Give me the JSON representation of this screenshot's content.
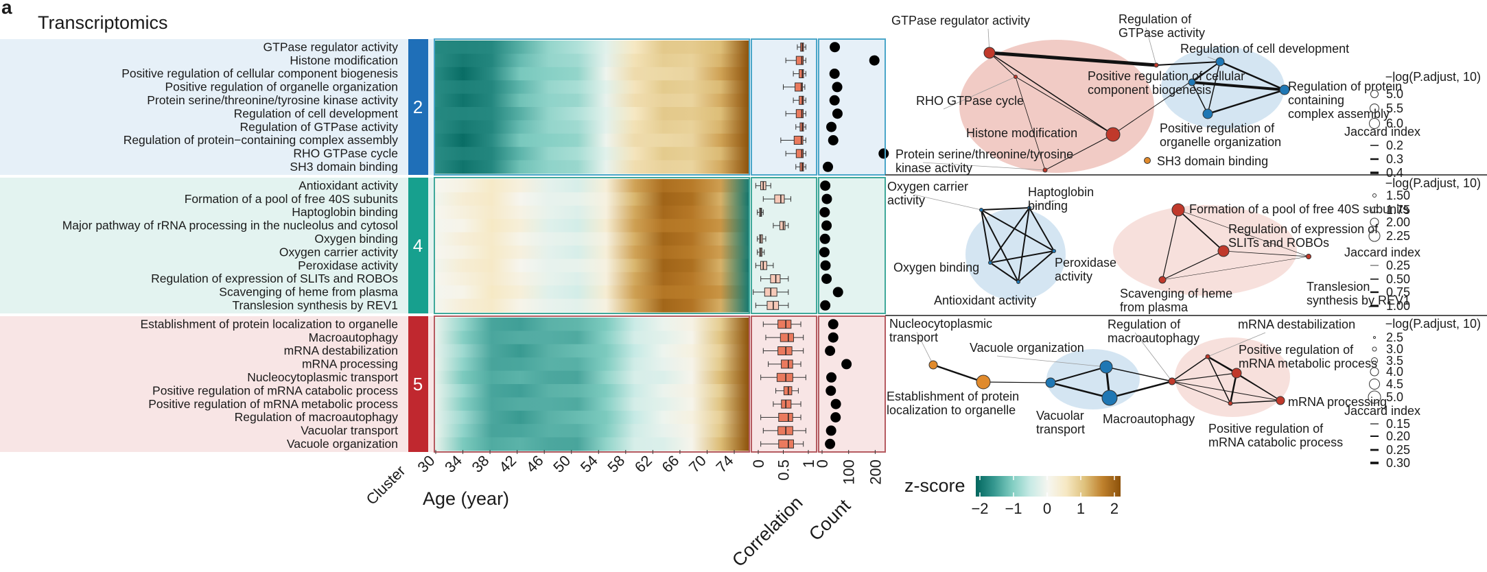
{
  "panel_letter": "a",
  "section_title": "Transcriptomics",
  "axis": {
    "cluster_label": "Cluster",
    "age_label": "Age (year)",
    "age_ticks": [
      "30",
      "34",
      "38",
      "42",
      "46",
      "50",
      "54",
      "58",
      "62",
      "66",
      "70",
      "74"
    ],
    "corr_label": "Correlation",
    "corr_ticks": [
      "0",
      "0.5",
      "1"
    ],
    "count_label": "Count",
    "count_ticks": [
      "0",
      "100",
      "200"
    ]
  },
  "zscore": {
    "title": "z-score",
    "ticks": [
      "−2",
      "−1",
      "0",
      "1",
      "2"
    ],
    "colors": [
      "#01665e",
      "#35978f",
      "#80cdc1",
      "#c7eae5",
      "#f6f6f0",
      "#f6e8c3",
      "#dfc27d",
      "#bf812d",
      "#8c510a"
    ]
  },
  "colors": {
    "cluster2": "#1f6fb8",
    "cluster4": "#17a08e",
    "cluster5": "#c0282f",
    "bg2": "#e6f0f8",
    "bg4": "#e3f3f0",
    "bg5": "#f8e5e5",
    "border2": "#4aa6c9",
    "border4": "#3fa89a",
    "border5": "#b55a60",
    "box": "#ea7a5e",
    "box_light": "#f6c9b8"
  },
  "chart_data": {
    "type": "heatmap",
    "clusters": [
      {
        "id": "2",
        "terms": [
          "GTPase regulator activity",
          "Histone modification",
          "Positive regulation of cellular component biogenesis",
          "Positive regulation of organelle organization",
          "Protein serine/threonine/tyrosine kinase activity",
          "Regulation of cell development",
          "Regulation of GTPase activity",
          "Regulation of protein−containing complex assembly",
          "RHO GTPase cycle",
          "SH3 domain binding"
        ],
        "counts": [
          48,
          197,
          47,
          57,
          47,
          58,
          35,
          42,
          232,
          22
        ],
        "correlation_median": [
          0.88,
          0.87,
          0.88,
          0.86,
          0.88,
          0.87,
          0.88,
          0.86,
          0.87,
          0.88
        ],
        "correlation_range": [
          [
            0.78,
            0.95
          ],
          [
            0.55,
            0.95
          ],
          [
            0.7,
            0.95
          ],
          [
            0.5,
            0.93
          ],
          [
            0.7,
            0.95
          ],
          [
            0.55,
            0.95
          ],
          [
            0.75,
            0.95
          ],
          [
            0.45,
            0.95
          ],
          [
            0.55,
            0.95
          ],
          [
            0.75,
            0.95
          ]
        ],
        "heatmap_profile": [
          -1.8,
          -1.7,
          -1.5,
          -1.3,
          -1.0,
          -0.6,
          -0.1,
          0.4,
          0.8,
          1.0,
          1.1,
          2.0
        ]
      },
      {
        "id": "4",
        "terms": [
          "Antioxidant activity",
          "Formation of a pool of free 40S subunits",
          "Haptoglobin binding",
          "Major pathway of rRNA processing in the nucleolus and cytosol",
          "Oxygen binding",
          "Oxygen carrier activity",
          "Peroxidase activity",
          "Regulation of expression of SLITs and ROBOs",
          "Scavenging of heme from plasma",
          "Translesion synthesis by REV1"
        ],
        "counts": [
          12,
          18,
          10,
          17,
          11,
          9,
          13,
          17,
          60,
          12
        ],
        "correlation_median": [
          0.1,
          0.45,
          0.05,
          0.5,
          0.05,
          0.05,
          0.1,
          0.35,
          0.25,
          0.3
        ],
        "correlation_range": [
          [
            -0.05,
            0.25
          ],
          [
            0.1,
            0.65
          ],
          [
            -0.02,
            0.1
          ],
          [
            0.3,
            0.6
          ],
          [
            -0.02,
            0.15
          ],
          [
            -0.02,
            0.12
          ],
          [
            -0.05,
            0.3
          ],
          [
            0.05,
            0.6
          ],
          [
            -0.1,
            0.6
          ],
          [
            -0.05,
            0.6
          ]
        ],
        "heatmap_profile": [
          -0.2,
          0.3,
          0.6,
          0.0,
          -0.3,
          -0.1,
          0.3,
          1.0,
          1.7,
          1.8,
          1.2,
          -2.0
        ]
      },
      {
        "id": "5",
        "terms": [
          "Establishment of protein localization to organelle",
          "Macroautophagy",
          "mRNA destabilization",
          "mRNA processing",
          "Nucleocytoplasmic transport",
          "Positive regulation of mRNA catabolic process",
          "Positive regulation of mRNA metabolic process",
          "Regulation of macroautophagy",
          "Vacuolar transport",
          "Vacuole organization"
        ],
        "counts": [
          42,
          42,
          30,
          92,
          35,
          33,
          52,
          51,
          34,
          30
        ],
        "correlation_median": [
          0.55,
          0.6,
          0.55,
          0.6,
          0.55,
          0.6,
          0.55,
          0.6,
          0.55,
          0.6
        ],
        "correlation_range": [
          [
            0.1,
            0.85
          ],
          [
            0.15,
            0.9
          ],
          [
            0.1,
            0.9
          ],
          [
            0.2,
            0.85
          ],
          [
            0.05,
            0.95
          ],
          [
            0.35,
            0.8
          ],
          [
            0.3,
            0.85
          ],
          [
            0.05,
            0.85
          ],
          [
            0.1,
            0.95
          ],
          [
            0.05,
            0.9
          ]
        ],
        "heatmap_profile": [
          -0.3,
          -0.8,
          -1.2,
          -1.5,
          -1.4,
          -1.1,
          -0.9,
          -0.6,
          -0.2,
          0.3,
          0.9,
          2.0
        ]
      }
    ],
    "correlation_xlim": [
      0,
      1
    ],
    "count_xlim": [
      0,
      230
    ]
  },
  "networks": [
    {
      "nodes": [
        {
          "label": "GTPase regulator activity",
          "color": "#c0392b"
        },
        {
          "label": "Regulation of GTPase activity",
          "color": "#c0392b"
        },
        {
          "label": "RHO GTPase cycle",
          "color": "#c0392b"
        },
        {
          "label": "Histone modification",
          "color": "#c0392b"
        },
        {
          "label": "Protein serine/threonine/tyrosine kinase activity",
          "color": "#c0392b"
        },
        {
          "label": "Regulation of cell development",
          "color": "#1f77b4"
        },
        {
          "label": "Positive regulation of cellular component biogenesis",
          "color": "#1f77b4"
        },
        {
          "label": "Regulation of protein containing complex assembly",
          "color": "#1f77b4"
        },
        {
          "label": "Positive regulation of organelle organization",
          "color": "#1f77b4"
        },
        {
          "label": "SH3 domain binding",
          "color": "#e08a2c"
        }
      ],
      "legend": {
        "title": "−log(P.adjust, 10)",
        "sizes": [
          "5.0",
          "5.5",
          "6.0"
        ],
        "jaccard_title": "Jaccard index",
        "jaccard": [
          "0.2",
          "0.3",
          "0.4"
        ]
      }
    },
    {
      "nodes": [
        {
          "label": "Oxygen carrier activity",
          "color": "#1f77b4"
        },
        {
          "label": "Haptoglobin binding",
          "color": "#1f77b4"
        },
        {
          "label": "Oxygen binding",
          "color": "#1f77b4"
        },
        {
          "label": "Peroxidase activity",
          "color": "#1f77b4"
        },
        {
          "label": "Antioxidant activity",
          "color": "#1f77b4"
        },
        {
          "label": "Formation of a pool of free 40S subunits",
          "color": "#c0392b"
        },
        {
          "label": "Regulation of expression of SLITs and ROBOs",
          "color": "#c0392b"
        },
        {
          "label": "Scavenging of heme from plasma",
          "color": "#c0392b"
        },
        {
          "label": "Translesion synthesis by REV1",
          "color": "#c0392b"
        }
      ],
      "legend": {
        "title": "−log(P.adjust, 10)",
        "sizes": [
          "1.50",
          "1.75",
          "2.00",
          "2.25"
        ],
        "jaccard_title": "Jaccard index",
        "jaccard": [
          "0.25",
          "0.50",
          "0.75",
          "1.00"
        ]
      }
    },
    {
      "nodes": [
        {
          "label": "Nucleocytoplasmic transport",
          "color": "#e08a2c"
        },
        {
          "label": "Establishment of protein localization to organelle",
          "color": "#e08a2c"
        },
        {
          "label": "Vacuole organization",
          "color": "#1f77b4"
        },
        {
          "label": "Vacuolar transport",
          "color": "#1f77b4"
        },
        {
          "label": "Macroautophagy",
          "color": "#1f77b4"
        },
        {
          "label": "Regulation of macroautophagy",
          "color": "#c0392b"
        },
        {
          "label": "mRNA destabilization",
          "color": "#c0392b"
        },
        {
          "label": "Positive regulation of mRNA metabolic process",
          "color": "#c0392b"
        },
        {
          "label": "mRNA processing",
          "color": "#c0392b"
        },
        {
          "label": "Positive regulation of mRNA catabolic process",
          "color": "#c0392b"
        }
      ],
      "legend": {
        "title": "−log(P.adjust, 10)",
        "sizes": [
          "2.5",
          "3.0",
          "3.5",
          "4.0",
          "4.5",
          "5.0"
        ],
        "jaccard_title": "Jaccard index",
        "jaccard": [
          "0.15",
          "0.20",
          "0.25",
          "0.30"
        ]
      }
    }
  ]
}
